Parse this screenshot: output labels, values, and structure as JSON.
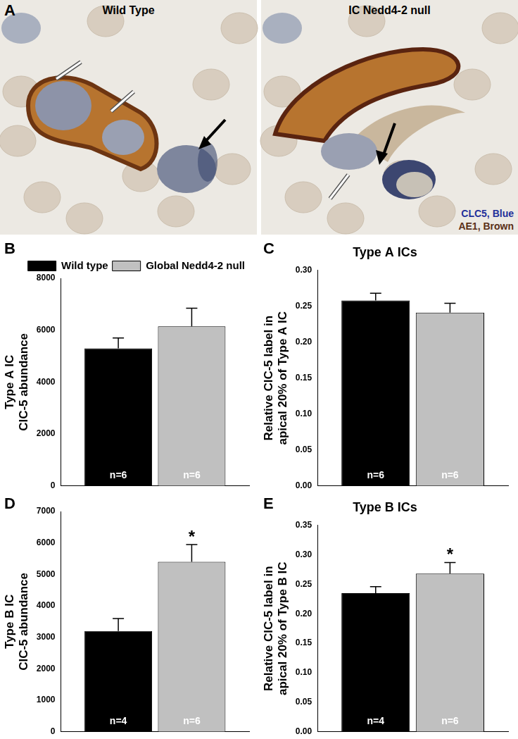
{
  "panel_a": {
    "letter": "A",
    "images": [
      {
        "title": "Wild Type"
      },
      {
        "title": "IC Nedd4-2 null"
      }
    ],
    "stain_labels": [
      {
        "text": "CLC5, Blue",
        "color": "#1f2f9a"
      },
      {
        "text": "AE1, Brown",
        "color": "#5a2f17"
      }
    ]
  },
  "chart_data": [
    {
      "type": "bar",
      "letter": "B",
      "ylabel": "Type A IC ClC-5 abundance",
      "categories": [
        null
      ],
      "legend": "top",
      "tick_labels": "y",
      "grid": false,
      "series": [
        {
          "name": "Wild type",
          "color": "#000000",
          "values": [
            5300
          ],
          "error": [
            400
          ],
          "n_labels": [
            "n=6"
          ]
        },
        {
          "name": "Global Nedd4-2 null",
          "color": "#c0c0c0",
          "values": [
            6150
          ],
          "error": [
            700
          ],
          "n_labels": [
            "n=6"
          ]
        }
      ],
      "ylim": [
        0,
        8000
      ],
      "yticks": [
        0,
        2000,
        4000,
        6000,
        8000
      ]
    },
    {
      "type": "bar",
      "letter": "C",
      "title": "Type A ICs",
      "ylabel": "Relative ClC-5 label in apical 20% of Type A IC",
      "categories": [
        null
      ],
      "tick_labels": "y",
      "grid": false,
      "series": [
        {
          "color": "#000000",
          "values": [
            0.258
          ],
          "error": [
            0.01
          ],
          "n_labels": [
            "n=6"
          ]
        },
        {
          "color": "#c0c0c0",
          "values": [
            0.241
          ],
          "error": [
            0.013
          ],
          "n_labels": [
            "n=6"
          ]
        }
      ],
      "ylim": [
        0,
        0.3
      ],
      "yticks": [
        {
          "value": 0,
          "label": "0.00"
        },
        {
          "value": 0.05,
          "label": "0.05"
        },
        {
          "value": 0.1,
          "label": "0.10"
        },
        {
          "value": 0.15,
          "label": "0.15"
        },
        {
          "value": 0.2,
          "label": "0.20"
        },
        {
          "value": 0.25,
          "label": "0.25"
        },
        {
          "value": 0.3,
          "label": "0.30"
        }
      ]
    },
    {
      "type": "bar",
      "letter": "D",
      "ylabel": "Type B IC ClC-5 abundance",
      "categories": [
        null
      ],
      "tick_labels": "y",
      "grid": false,
      "series": [
        {
          "color": "#000000",
          "values": [
            3200
          ],
          "error": [
            400
          ],
          "n_labels": [
            "n=4"
          ]
        },
        {
          "color": "#c0c0c0",
          "values": [
            5400
          ],
          "error": [
            550
          ],
          "n_labels": [
            "n=6"
          ],
          "significance": [
            "*"
          ]
        }
      ],
      "ylim": [
        0,
        7000
      ],
      "yticks": [
        0,
        1000,
        2000,
        3000,
        4000,
        5000,
        6000,
        7000
      ]
    },
    {
      "type": "bar",
      "letter": "E",
      "title": "Type B ICs",
      "ylabel": "Relative ClC-5 label in apical 20% of Type B IC",
      "categories": [
        null
      ],
      "tick_labels": "y",
      "grid": false,
      "series": [
        {
          "color": "#000000",
          "values": [
            0.235
          ],
          "error": [
            0.011
          ],
          "n_labels": [
            "n=4"
          ]
        },
        {
          "color": "#c0c0c0",
          "values": [
            0.268
          ],
          "error": [
            0.019
          ],
          "n_labels": [
            "n=6"
          ],
          "significance": [
            "*"
          ]
        }
      ],
      "ylim": [
        0,
        0.35
      ],
      "yticks": [
        {
          "value": 0,
          "label": "0.00"
        },
        {
          "value": 0.05,
          "label": "0.05"
        },
        {
          "value": 0.1,
          "label": "0.10"
        },
        {
          "value": 0.15,
          "label": "0.15"
        },
        {
          "value": 0.2,
          "label": "0.20"
        },
        {
          "value": 0.25,
          "label": "0.25"
        },
        {
          "value": 0.3,
          "label": "0.30"
        },
        {
          "value": 0.35,
          "label": "0.35"
        }
      ]
    }
  ]
}
